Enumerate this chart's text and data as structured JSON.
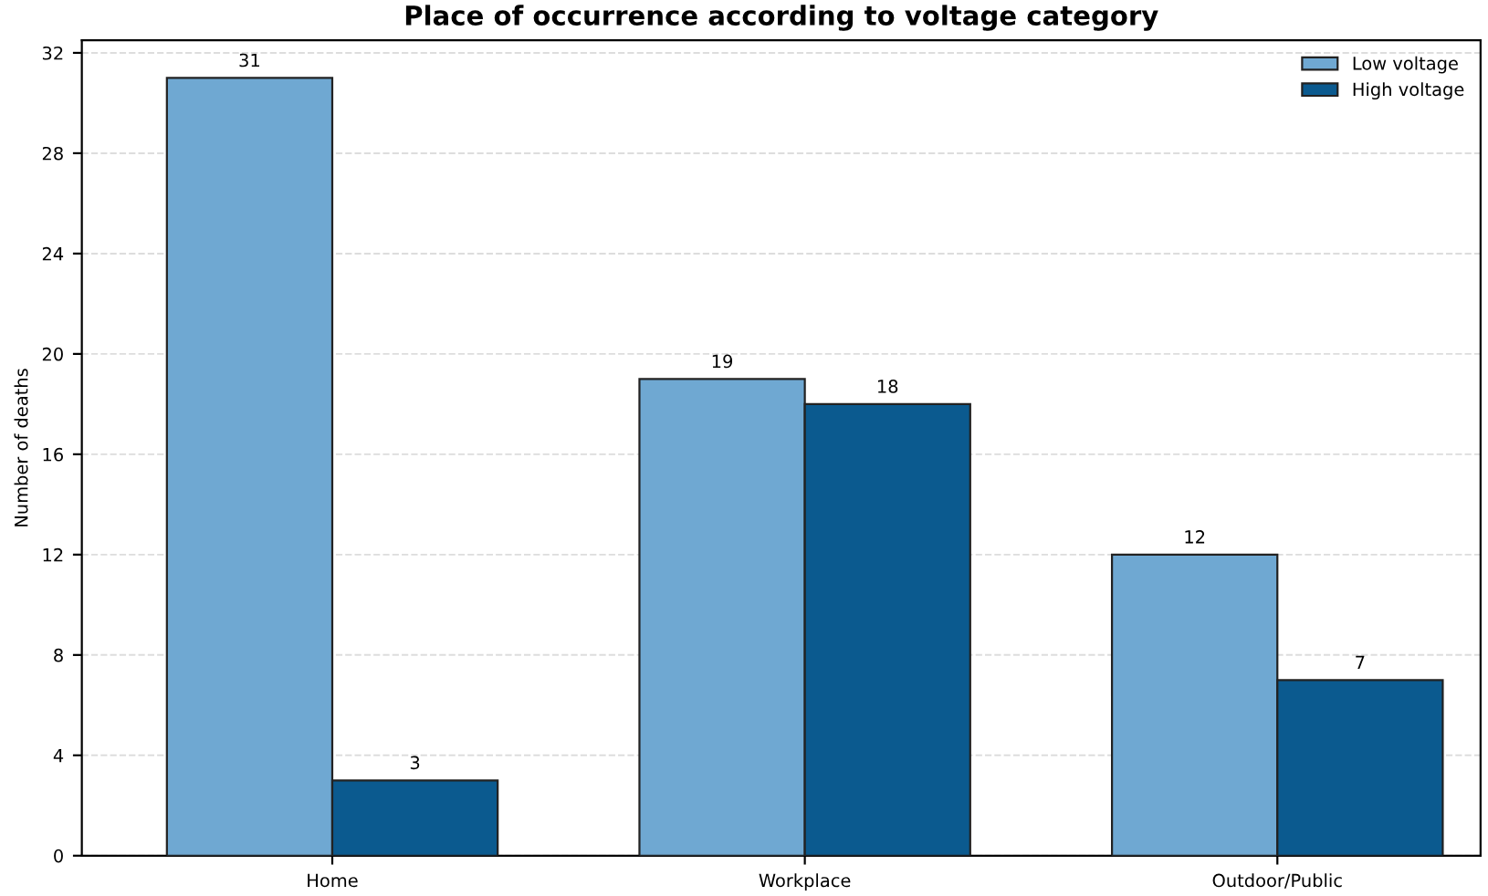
{
  "chart_data": {
    "type": "bar",
    "title": "Place of occurrence according to voltage category",
    "ylabel": "Number of deaths",
    "categories": [
      "Home",
      "Workplace",
      "Outdoor/Public"
    ],
    "series": [
      {
        "name": "Low voltage",
        "color": "#6fa8d2",
        "values": [
          31,
          19,
          12
        ]
      },
      {
        "name": "High voltage",
        "color": "#0b5a8f",
        "values": [
          3,
          18,
          7
        ]
      }
    ],
    "ylim": [
      0,
      32.5
    ],
    "yticks": [
      0,
      4,
      8,
      12,
      16,
      20,
      24,
      28,
      32
    ],
    "grid": "y",
    "legend": "top right",
    "data_labels": true
  }
}
